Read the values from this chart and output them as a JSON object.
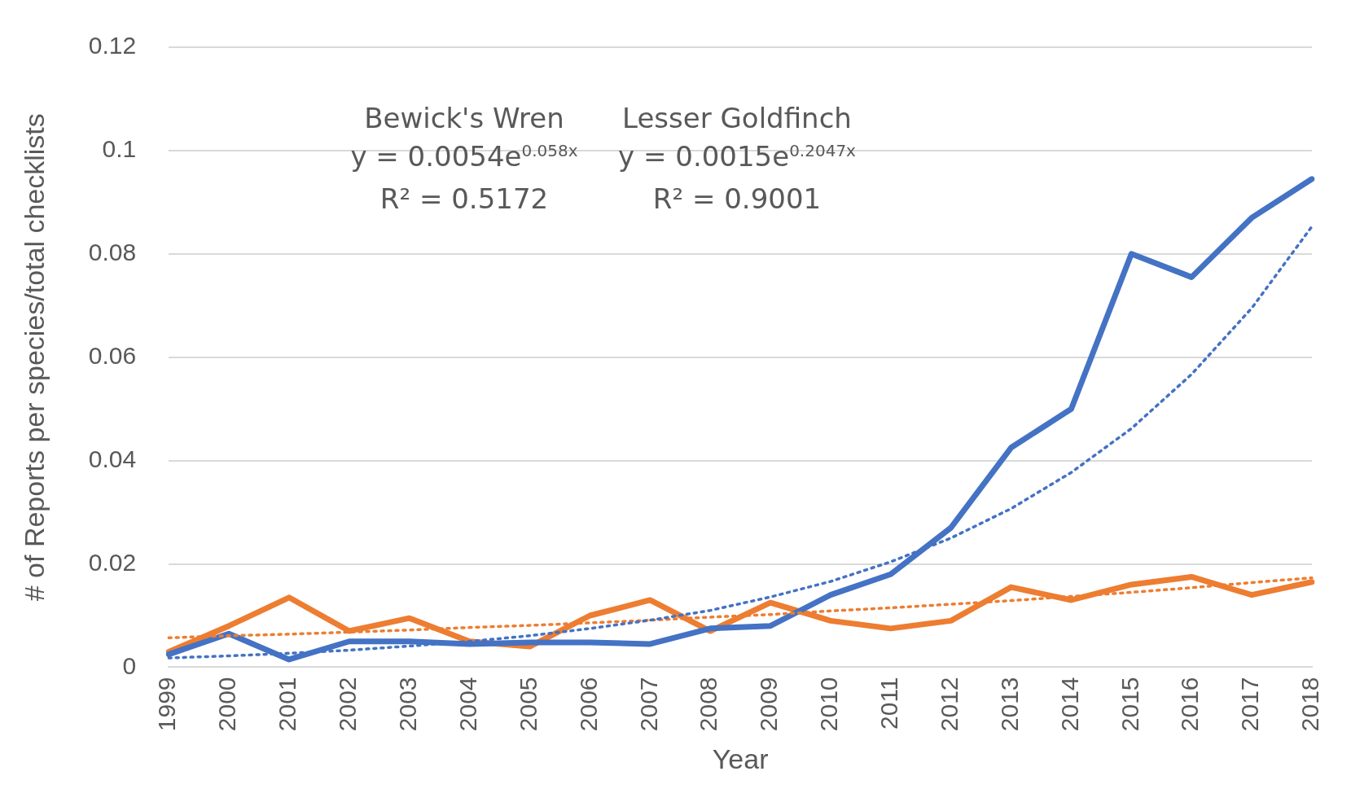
{
  "chart_data": {
    "type": "line",
    "xlabel": "Year",
    "ylabel": "# of Reports per species/total checklists",
    "categories": [
      "1999",
      "2000",
      "2001",
      "2002",
      "2003",
      "2004",
      "2005",
      "2006",
      "2007",
      "2008",
      "2009",
      "2010",
      "2011",
      "2012",
      "2013",
      "2014",
      "2015",
      "2016",
      "2017",
      "2018"
    ],
    "series": [
      {
        "color": "#4472c4",
        "values": [
          0.0025,
          0.0065,
          0.0015,
          0.005,
          0.005,
          0.0045,
          0.0048,
          0.0048,
          0.0045,
          0.0075,
          0.008,
          0.014,
          0.018,
          0.027,
          0.0425,
          0.05,
          0.08,
          0.0755,
          0.087,
          0.0945
        ]
      },
      {
        "color": "#ed7d31",
        "values": [
          0.003,
          0.008,
          0.0135,
          0.007,
          0.0095,
          0.005,
          0.004,
          0.01,
          0.013,
          0.007,
          0.0125,
          0.009,
          0.0075,
          0.009,
          0.0155,
          0.013,
          0.016,
          0.0175,
          0.014,
          0.0165
        ]
      },
      {
        "color": "#4472c4",
        "line_style": "dotted",
        "values": [
          0.0018,
          0.0022,
          0.0027,
          0.0033,
          0.0041,
          0.005,
          0.0061,
          0.0075,
          0.0091,
          0.011,
          0.0136,
          0.0166,
          0.0204,
          0.025,
          0.0307,
          0.0377,
          0.0462,
          0.0567,
          0.0695,
          0.0853
        ]
      },
      {
        "color": "#ed7d31",
        "line_style": "dotted",
        "values": [
          0.0057,
          0.0061,
          0.0064,
          0.0068,
          0.0072,
          0.0077,
          0.0081,
          0.0086,
          0.0091,
          0.0097,
          0.0102,
          0.0109,
          0.0115,
          0.0122,
          0.0129,
          0.0137,
          0.0145,
          0.0154,
          0.0164,
          0.0173
        ]
      }
    ],
    "ylim": [
      0,
      0.12
    ],
    "yticks": [
      0,
      0.02,
      0.04,
      0.06,
      0.08,
      0.1,
      0.12
    ],
    "grid": "y",
    "legend": false,
    "marker": "none",
    "line_style": "solid",
    "annotations": [
      "Bewick's Wren",
      "y = 0.0054e$^{0.058x}$",
      "R² = 0.5172",
      "Lesser Goldfinch",
      "y = 0.0015e$^{0.2047x}$",
      "R² = 0.9001"
    ]
  }
}
